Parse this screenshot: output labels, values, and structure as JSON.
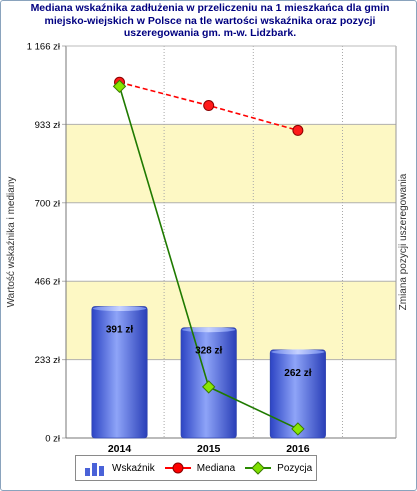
{
  "chart_data": {
    "type": "bar+line",
    "title_lines": [
      "Mediana wskaźnika zadłużenia w przeliczeniu na 1 mieszkańca dla gmin",
      "miejsko-wiejskich w Polsce na tle wartości wskaźnika oraz pozycji",
      "uszeregowania gm. m-w. Lidzbark."
    ],
    "ylabel": "Wartość wskaźnika i mediany",
    "ylabel_right": "Zmiana pozycji uszeregowania",
    "categories": [
      "2014",
      "2015",
      "2016"
    ],
    "yticks": [
      "0 zł",
      "233 zł",
      "466 zł",
      "700 zł",
      "933 zł",
      "1 166 zł"
    ],
    "ylim": [
      0,
      1166
    ],
    "series": [
      {
        "name": "Wskaźnik",
        "kind": "bar",
        "values": [
          391,
          328,
          262
        ],
        "labels": [
          "391 zł",
          "328 zł",
          "262 zł"
        ],
        "color": "#4a62d8"
      },
      {
        "name": "Mediana",
        "kind": "line-dashed",
        "values": [
          1058,
          989,
          915
        ],
        "color": "#ff0000"
      },
      {
        "name": "Pozycja",
        "kind": "line",
        "values": [
          1046,
          152,
          27
        ],
        "color": "#007a00"
      }
    ],
    "grid": true,
    "legend_position": "bottom"
  }
}
